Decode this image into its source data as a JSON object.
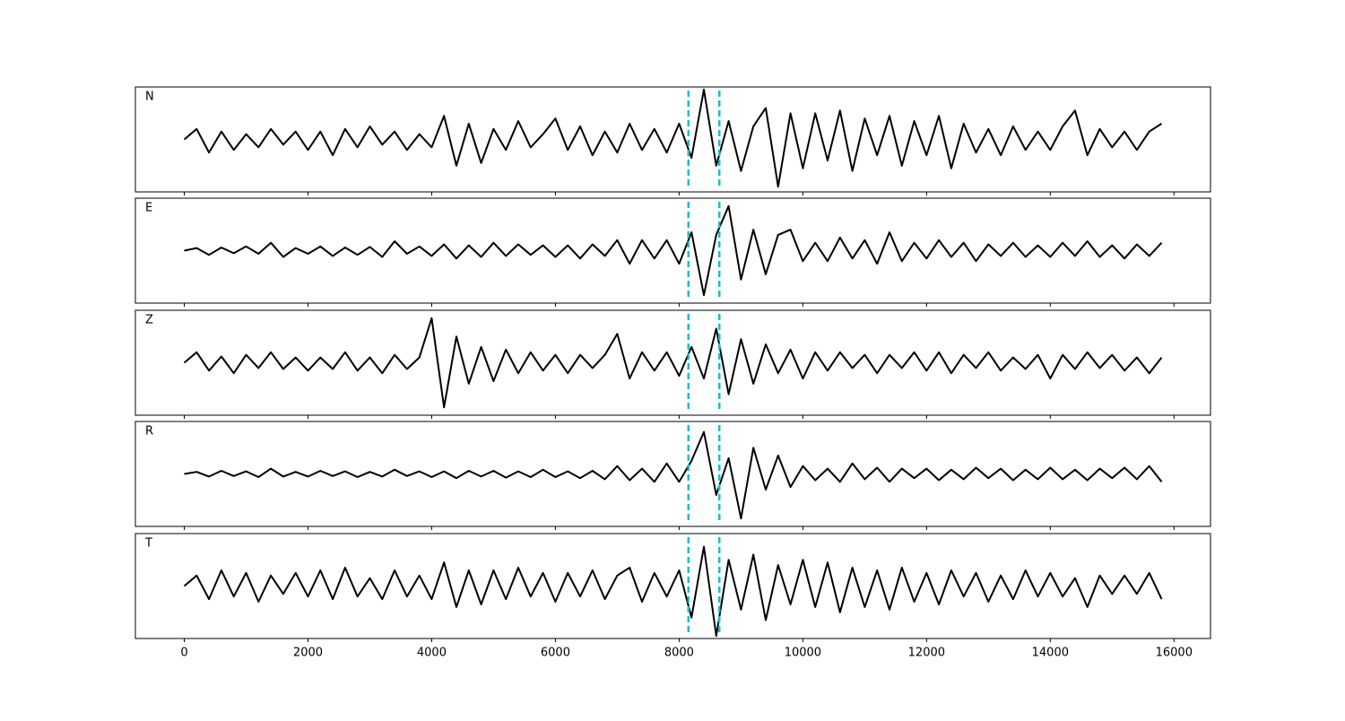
{
  "chart_data": [
    {
      "type": "line",
      "label": "N",
      "color": "#000000",
      "vline_color": "#17becf",
      "vlines": [
        8150,
        8650
      ],
      "xlim": [
        -790,
        16590
      ],
      "xticks": [
        0,
        2000,
        4000,
        6000,
        8000,
        10000,
        12000,
        14000,
        16000
      ],
      "ylim": [
        -1,
        1
      ],
      "x": [
        0,
        200,
        400,
        600,
        800,
        1000,
        1200,
        1400,
        1600,
        1800,
        2000,
        2200,
        2400,
        2600,
        2800,
        3000,
        3200,
        3400,
        3600,
        3800,
        4000,
        4200,
        4400,
        4600,
        4800,
        5000,
        5200,
        5400,
        5600,
        5800,
        6000,
        6200,
        6400,
        6600,
        6800,
        7000,
        7200,
        7400,
        7600,
        7800,
        8000,
        8200,
        8400,
        8600,
        8800,
        9000,
        9200,
        9400,
        9600,
        9800,
        10000,
        10200,
        10400,
        10600,
        10800,
        11000,
        11200,
        11400,
        11600,
        11800,
        12000,
        12200,
        12400,
        12600,
        12800,
        13000,
        13200,
        13400,
        13600,
        13800,
        14000,
        14200,
        14400,
        14600,
        14800,
        15000,
        15200,
        15400,
        15600,
        15800
      ],
      "values": [
        0,
        0.2,
        -0.25,
        0.15,
        -0.2,
        0.1,
        -0.15,
        0.2,
        -0.1,
        0.15,
        -0.2,
        0.15,
        -0.3,
        0.2,
        -0.15,
        0.25,
        -0.1,
        0.15,
        -0.2,
        0.1,
        -0.15,
        0.45,
        -0.5,
        0.3,
        -0.45,
        0.2,
        -0.2,
        0.35,
        -0.15,
        0.1,
        0.4,
        -0.2,
        0.25,
        -0.3,
        0.15,
        -0.25,
        0.3,
        -0.2,
        0.2,
        -0.25,
        0.3,
        -0.35,
        0.95,
        -0.5,
        0.35,
        -0.6,
        0.25,
        0.6,
        -0.9,
        0.5,
        -0.55,
        0.5,
        -0.4,
        0.55,
        -0.6,
        0.4,
        -0.3,
        0.45,
        -0.5,
        0.35,
        -0.3,
        0.45,
        -0.55,
        0.3,
        -0.25,
        0.2,
        -0.3,
        0.25,
        -0.2,
        0.15,
        -0.2,
        0.25,
        0.55,
        -0.3,
        0.2,
        -0.15,
        0.15,
        -0.2,
        0.15,
        0.3
      ]
    },
    {
      "type": "line",
      "label": "E",
      "color": "#000000",
      "vline_color": "#17becf",
      "vlines": [
        8150,
        8650
      ],
      "xlim": [
        -790,
        16590
      ],
      "xticks": [
        0,
        2000,
        4000,
        6000,
        8000,
        10000,
        12000,
        14000,
        16000
      ],
      "ylim": [
        -1,
        1
      ],
      "x": [
        0,
        200,
        400,
        600,
        800,
        1000,
        1200,
        1400,
        1600,
        1800,
        2000,
        2200,
        2400,
        2600,
        2800,
        3000,
        3200,
        3400,
        3600,
        3800,
        4000,
        4200,
        4400,
        4600,
        4800,
        5000,
        5200,
        5400,
        5600,
        5800,
        6000,
        6200,
        6400,
        6600,
        6800,
        7000,
        7200,
        7400,
        7600,
        7800,
        8000,
        8200,
        8400,
        8600,
        8800,
        9000,
        9200,
        9400,
        9600,
        9800,
        10000,
        10200,
        10400,
        10600,
        10800,
        11000,
        11200,
        11400,
        11600,
        11800,
        12000,
        12200,
        12400,
        12600,
        12800,
        13000,
        13200,
        13400,
        13600,
        13800,
        14000,
        14200,
        14400,
        14600,
        14800,
        15000,
        15200,
        15400,
        15600,
        15800
      ],
      "values": [
        0,
        0.05,
        -0.08,
        0.06,
        -0.05,
        0.08,
        -0.06,
        0.15,
        -0.12,
        0.05,
        -0.06,
        0.08,
        -0.1,
        0.06,
        -0.08,
        0.07,
        -0.12,
        0.18,
        -0.06,
        0.08,
        -0.1,
        0.12,
        -0.15,
        0.1,
        -0.12,
        0.15,
        -0.1,
        0.12,
        -0.08,
        0.1,
        -0.12,
        0.1,
        -0.15,
        0.12,
        -0.1,
        0.2,
        -0.25,
        0.2,
        -0.15,
        0.2,
        -0.25,
        0.35,
        -0.85,
        0.3,
        0.85,
        -0.55,
        0.4,
        -0.45,
        0.3,
        0.4,
        -0.2,
        0.15,
        -0.2,
        0.25,
        -0.15,
        0.2,
        -0.25,
        0.35,
        -0.2,
        0.15,
        -0.15,
        0.2,
        -0.12,
        0.15,
        -0.2,
        0.12,
        -0.1,
        0.15,
        -0.12,
        0.1,
        -0.12,
        0.15,
        -0.1,
        0.18,
        -0.12,
        0.1,
        -0.15,
        0.12,
        -0.1,
        0.15
      ]
    },
    {
      "type": "line",
      "label": "Z",
      "color": "#000000",
      "vline_color": "#17becf",
      "vlines": [
        8150,
        8650
      ],
      "xlim": [
        -790,
        16590
      ],
      "xticks": [
        0,
        2000,
        4000,
        6000,
        8000,
        10000,
        12000,
        14000,
        16000
      ],
      "ylim": [
        -1,
        1
      ],
      "x": [
        0,
        200,
        400,
        600,
        800,
        1000,
        1200,
        1400,
        1600,
        1800,
        2000,
        2200,
        2400,
        2600,
        2800,
        3000,
        3200,
        3400,
        3600,
        3800,
        4000,
        4200,
        4400,
        4600,
        4800,
        5000,
        5200,
        5400,
        5600,
        5800,
        6000,
        6200,
        6400,
        6600,
        6800,
        7000,
        7200,
        7400,
        7600,
        7800,
        8000,
        8200,
        8400,
        8600,
        8800,
        9000,
        9200,
        9400,
        9600,
        9800,
        10000,
        10200,
        10400,
        10600,
        10800,
        11000,
        11200,
        11400,
        11600,
        11800,
        12000,
        12200,
        12400,
        12600,
        12800,
        13000,
        13200,
        13400,
        13600,
        13800,
        14000,
        14200,
        14400,
        14600,
        14800,
        15000,
        15200,
        15400,
        15600,
        15800
      ],
      "values": [
        0,
        0.2,
        -0.15,
        0.12,
        -0.2,
        0.15,
        -0.1,
        0.2,
        -0.12,
        0.1,
        -0.15,
        0.1,
        -0.12,
        0.2,
        -0.15,
        0.1,
        -0.2,
        0.15,
        -0.12,
        0.1,
        0.85,
        -0.85,
        0.5,
        -0.4,
        0.3,
        -0.35,
        0.25,
        -0.2,
        0.2,
        -0.15,
        0.15,
        -0.2,
        0.15,
        -0.1,
        0.15,
        0.55,
        -0.3,
        0.2,
        -0.15,
        0.2,
        -0.25,
        0.3,
        -0.3,
        0.65,
        -0.6,
        0.45,
        -0.4,
        0.35,
        -0.2,
        0.25,
        -0.3,
        0.2,
        -0.15,
        0.2,
        -0.1,
        0.15,
        -0.2,
        0.15,
        -0.1,
        0.2,
        -0.15,
        0.2,
        -0.2,
        0.15,
        -0.1,
        0.2,
        -0.15,
        0.1,
        -0.12,
        0.15,
        -0.3,
        0.15,
        -0.12,
        0.2,
        -0.1,
        0.15,
        -0.15,
        0.1,
        -0.2,
        0.1
      ]
    },
    {
      "type": "line",
      "label": "R",
      "color": "#000000",
      "vline_color": "#17becf",
      "vlines": [
        8150,
        8650
      ],
      "xlim": [
        -790,
        16590
      ],
      "xticks": [
        0,
        2000,
        4000,
        6000,
        8000,
        10000,
        12000,
        14000,
        16000
      ],
      "ylim": [
        -1,
        1
      ],
      "x": [
        0,
        200,
        400,
        600,
        800,
        1000,
        1200,
        1400,
        1600,
        1800,
        2000,
        2200,
        2400,
        2600,
        2800,
        3000,
        3200,
        3400,
        3600,
        3800,
        4000,
        4200,
        4400,
        4600,
        4800,
        5000,
        5200,
        5400,
        5600,
        5800,
        6000,
        6200,
        6400,
        6600,
        6800,
        7000,
        7200,
        7400,
        7600,
        7800,
        8000,
        8200,
        8400,
        8600,
        8800,
        9000,
        9200,
        9400,
        9600,
        9800,
        10000,
        10200,
        10400,
        10600,
        10800,
        11000,
        11200,
        11400,
        11600,
        11800,
        12000,
        12200,
        12400,
        12600,
        12800,
        13000,
        13200,
        13400,
        13600,
        13800,
        14000,
        14200,
        14400,
        14600,
        14800,
        15000,
        15200,
        15400,
        15600,
        15800
      ],
      "values": [
        0,
        0.04,
        -0.05,
        0.06,
        -0.04,
        0.05,
        -0.06,
        0.1,
        -0.05,
        0.04,
        -0.05,
        0.06,
        -0.04,
        0.05,
        -0.06,
        0.04,
        -0.05,
        0.08,
        -0.04,
        0.05,
        -0.06,
        0.05,
        -0.08,
        0.06,
        -0.05,
        0.06,
        -0.07,
        0.05,
        -0.06,
        0.08,
        -0.06,
        0.05,
        -0.08,
        0.06,
        -0.1,
        0.15,
        -0.12,
        0.1,
        -0.15,
        0.2,
        -0.15,
        0.25,
        0.8,
        -0.4,
        0.3,
        -0.85,
        0.5,
        -0.3,
        0.35,
        -0.25,
        0.15,
        -0.12,
        0.1,
        -0.15,
        0.2,
        -0.1,
        0.12,
        -0.15,
        0.1,
        -0.08,
        0.1,
        -0.12,
        0.08,
        -0.1,
        0.12,
        -0.08,
        0.1,
        -0.12,
        0.08,
        -0.1,
        0.12,
        -0.1,
        0.08,
        -0.12,
        0.1,
        -0.08,
        0.12,
        -0.1,
        0.15,
        -0.15
      ]
    },
    {
      "type": "line",
      "label": "T",
      "color": "#000000",
      "vline_color": "#17becf",
      "vlines": [
        8150,
        8650
      ],
      "xlim": [
        -790,
        16590
      ],
      "xticks": [
        0,
        2000,
        4000,
        6000,
        8000,
        10000,
        12000,
        14000,
        16000
      ],
      "ylim": [
        -1,
        1
      ],
      "x": [
        0,
        200,
        400,
        600,
        800,
        1000,
        1200,
        1400,
        1600,
        1800,
        2000,
        2200,
        2400,
        2600,
        2800,
        3000,
        3200,
        3400,
        3600,
        3800,
        4000,
        4200,
        4400,
        4600,
        4800,
        5000,
        5200,
        5400,
        5600,
        5800,
        6000,
        6200,
        6400,
        6600,
        6800,
        7000,
        7200,
        7400,
        7600,
        7800,
        8000,
        8200,
        8400,
        8600,
        8800,
        9000,
        9200,
        9400,
        9600,
        9800,
        10000,
        10200,
        10400,
        10600,
        10800,
        11000,
        11200,
        11400,
        11600,
        11800,
        12000,
        12200,
        12400,
        12600,
        12800,
        13000,
        13200,
        13400,
        13600,
        13800,
        14000,
        14200,
        14400,
        14600,
        14800,
        15000,
        15200,
        15400,
        15600,
        15800
      ],
      "values": [
        0,
        0.2,
        -0.25,
        0.3,
        -0.2,
        0.25,
        -0.3,
        0.2,
        -0.15,
        0.25,
        -0.2,
        0.3,
        -0.25,
        0.35,
        -0.2,
        0.15,
        -0.25,
        0.3,
        -0.2,
        0.2,
        -0.25,
        0.45,
        -0.4,
        0.3,
        -0.35,
        0.3,
        -0.25,
        0.35,
        -0.2,
        0.25,
        -0.3,
        0.25,
        -0.2,
        0.3,
        -0.25,
        0.2,
        0.35,
        -0.3,
        0.25,
        -0.2,
        0.3,
        -0.6,
        0.75,
        -0.95,
        0.5,
        -0.45,
        0.6,
        -0.65,
        0.4,
        -0.35,
        0.5,
        -0.4,
        0.45,
        -0.5,
        0.35,
        -0.4,
        0.3,
        -0.45,
        0.35,
        -0.3,
        0.25,
        -0.35,
        0.3,
        -0.2,
        0.25,
        -0.3,
        0.2,
        -0.25,
        0.3,
        -0.2,
        0.25,
        -0.2,
        0.15,
        -0.4,
        0.2,
        -0.15,
        0.2,
        -0.15,
        0.25,
        -0.25
      ]
    }
  ]
}
